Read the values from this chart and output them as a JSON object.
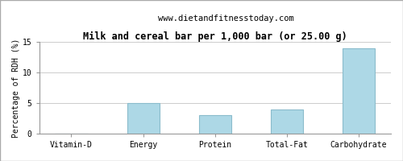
{
  "title": "Milk and cereal bar per 1,000 bar (or 25.00 g)",
  "subtitle": "www.dietandfitnesstoday.com",
  "categories": [
    "Vitamin-D",
    "Energy",
    "Protein",
    "Total-Fat",
    "Carbohydrate"
  ],
  "values": [
    0,
    5,
    3,
    4,
    14
  ],
  "bar_color": "#add8e6",
  "bar_edge_color": "#8bbccc",
  "ylabel": "Percentage of RDH (%)",
  "ylim": [
    0,
    15
  ],
  "yticks": [
    0,
    5,
    10,
    15
  ],
  "background_color": "#ffffff",
  "grid_color": "#cccccc",
  "title_fontsize": 8.5,
  "subtitle_fontsize": 7.5,
  "ylabel_fontsize": 7,
  "tick_fontsize": 7,
  "outer_border_color": "#aaaaaa"
}
